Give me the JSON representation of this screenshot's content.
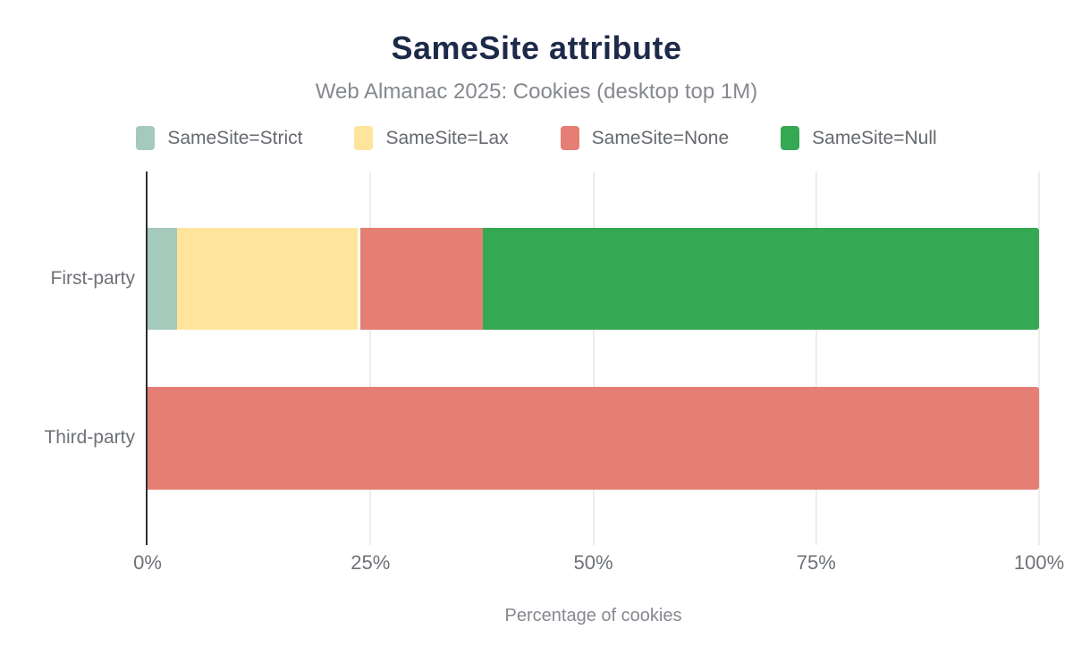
{
  "title": {
    "text": "SameSite attribute",
    "color": "#1e2a49"
  },
  "subtitle": {
    "text": "Web Almanac 2025: Cookies (desktop top 1M)",
    "color": "#85898f"
  },
  "xaxis": {
    "label": "Percentage of cookies",
    "ticks": [
      "0%",
      "25%",
      "50%",
      "75%",
      "100%"
    ]
  },
  "chart_data": {
    "type": "bar",
    "orientation": "horizontal",
    "stacked": true,
    "title": "SameSite attribute",
    "subtitle": "Web Almanac 2025: Cookies (desktop top 1M)",
    "xlabel": "Percentage of cookies",
    "categories": [
      "First-party",
      "Third-party"
    ],
    "series": [
      {
        "name": "SameSite=Strict",
        "color": "#a5c9bb",
        "values": [
          3.3,
          0
        ]
      },
      {
        "name": "SameSite=Lax",
        "color": "#ffe49c",
        "values": [
          20.3,
          0
        ]
      },
      {
        "name": "SameSite=None",
        "color": "#e57e74",
        "values": [
          13.8,
          100
        ],
        "gap_before": true
      },
      {
        "name": "SameSite=Null",
        "color": "#35a853",
        "values": [
          62.6,
          0
        ]
      }
    ],
    "xticks": [
      "0%",
      "25%",
      "50%",
      "75%",
      "100%"
    ],
    "xlim": [
      0,
      100
    ],
    "grid": true,
    "legend_position": "top",
    "colors": {
      "axis_line": "#2e2e2e",
      "gridline": "#ededed",
      "tick_label": "#6e7277",
      "category_label": "#6e7277",
      "legend_label": "#65696e"
    }
  }
}
